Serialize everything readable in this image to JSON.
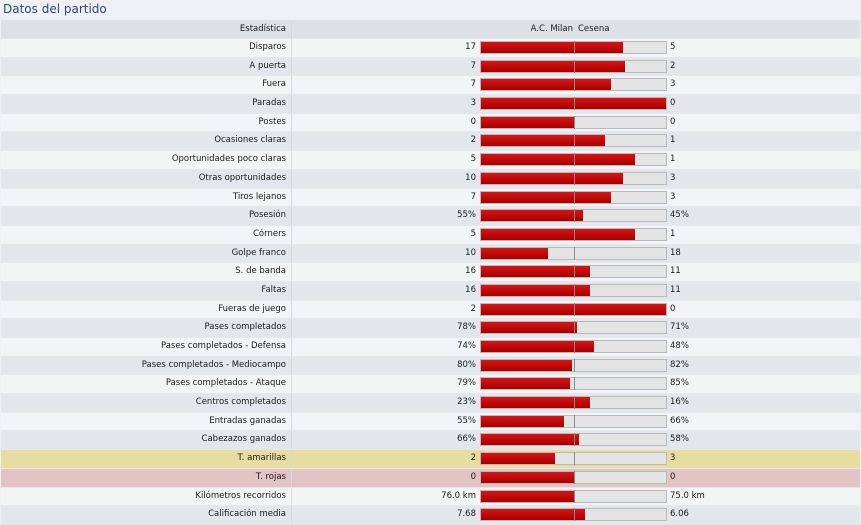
{
  "title": "Datos del partido",
  "header": {
    "stat": "Estadística",
    "home": "A.C. Milan",
    "away": "Cesena"
  },
  "colors": {
    "bar": "#c00000",
    "highlight_yellow": "#e8dda0",
    "highlight_red": "#e3c4c4"
  },
  "rows": [
    {
      "label": "Disparos",
      "home": "17",
      "away": "5",
      "home_share": 0.77
    },
    {
      "label": "A puerta",
      "home": "7",
      "away": "2",
      "home_share": 0.78
    },
    {
      "label": "Fuera",
      "home": "7",
      "away": "3",
      "home_share": 0.7
    },
    {
      "label": "Paradas",
      "home": "3",
      "away": "0",
      "home_share": 1.0
    },
    {
      "label": "Postes",
      "home": "0",
      "away": "0",
      "home_share": 0.5
    },
    {
      "label": "Ocasiones claras",
      "home": "2",
      "away": "1",
      "home_share": 0.67
    },
    {
      "label": "Oportunidades poco claras",
      "home": "5",
      "away": "1",
      "home_share": 0.83
    },
    {
      "label": "Otras oportunidades",
      "home": "10",
      "away": "3",
      "home_share": 0.77
    },
    {
      "label": "Tiros lejanos",
      "home": "7",
      "away": "3",
      "home_share": 0.7
    },
    {
      "label": "Posesión",
      "home": "55%",
      "away": "45%",
      "home_share": 0.55
    },
    {
      "label": "Córners",
      "home": "5",
      "away": "1",
      "home_share": 0.83
    },
    {
      "label": "Golpe franco",
      "home": "10",
      "away": "18",
      "home_share": 0.36
    },
    {
      "label": "S. de banda",
      "home": "16",
      "away": "11",
      "home_share": 0.59
    },
    {
      "label": "Faltas",
      "home": "16",
      "away": "11",
      "home_share": 0.59
    },
    {
      "label": "Fueras de juego",
      "home": "2",
      "away": "0",
      "home_share": 1.0
    },
    {
      "label": "Pases completados",
      "home": "78%",
      "away": "71%",
      "home_share": 0.52
    },
    {
      "label": "Pases completados - Defensa",
      "home": "74%",
      "away": "48%",
      "home_share": 0.61
    },
    {
      "label": "Pases completados - Mediocampo",
      "home": "80%",
      "away": "82%",
      "home_share": 0.49
    },
    {
      "label": "Pases completados - Ataque",
      "home": "79%",
      "away": "85%",
      "home_share": 0.48
    },
    {
      "label": "Centros completados",
      "home": "23%",
      "away": "16%",
      "home_share": 0.59
    },
    {
      "label": "Entradas ganadas",
      "home": "55%",
      "away": "66%",
      "home_share": 0.45
    },
    {
      "label": "Cabezazos ganados",
      "home": "66%",
      "away": "58%",
      "home_share": 0.53
    },
    {
      "label": "T. amarillas",
      "home": "2",
      "away": "3",
      "home_share": 0.4,
      "highlight": "yellow"
    },
    {
      "label": "T. rojas",
      "home": "0",
      "away": "0",
      "home_share": 0.5,
      "highlight": "red"
    },
    {
      "label": "Kilómetros recorridos",
      "home": "76.0 km",
      "away": "75.0 km",
      "home_share": 0.5
    },
    {
      "label": "Calificación media",
      "home": "7.68",
      "away": "6.06",
      "home_share": 0.56
    }
  ]
}
